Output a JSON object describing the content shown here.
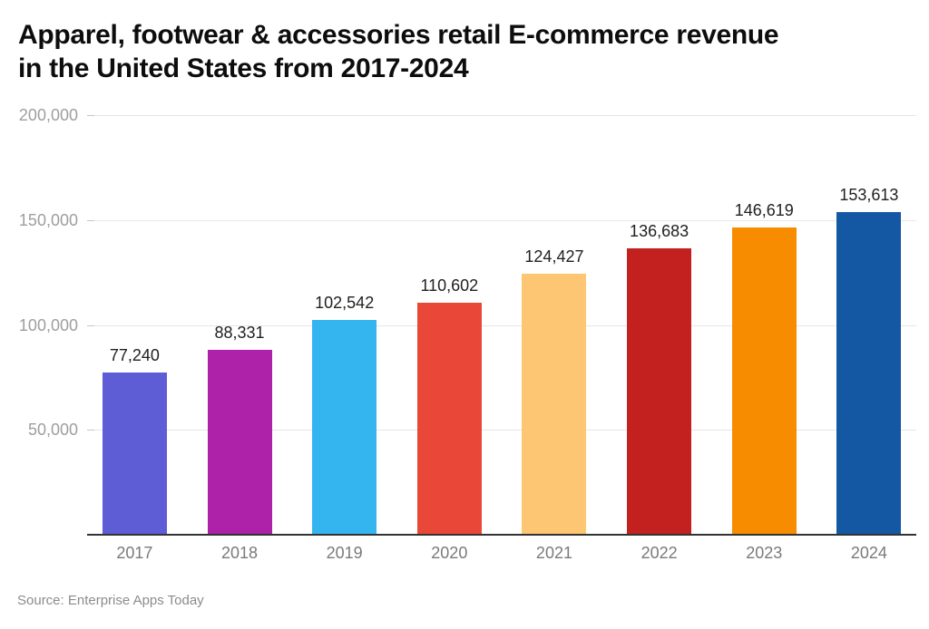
{
  "header": {
    "title": "Apparel, footwear & accessories retail E-commerce revenue in the United States from 2017-2024",
    "title_line1": "Apparel, footwear & accessories retail E-commerce revenue",
    "title_line2": "in the United States from 2017-2024"
  },
  "footer": {
    "source": "Source: Enterprise Apps Today"
  },
  "chart_data": {
    "type": "bar",
    "title": "Apparel, footwear & accessories retail E-commerce revenue in the United States from 2017-2024",
    "categories": [
      "2017",
      "2018",
      "2019",
      "2020",
      "2021",
      "2022",
      "2023",
      "2024"
    ],
    "values": [
      77240,
      88331,
      102542,
      110602,
      124427,
      136683,
      146619,
      153613
    ],
    "value_labels": [
      "77,240",
      "88,331",
      "102,542",
      "110,602",
      "124,427",
      "136,683",
      "146,619",
      "153,613"
    ],
    "bar_colors": [
      "#5e5dd6",
      "#ae22aa",
      "#35b5f0",
      "#e94738",
      "#fdc672",
      "#c32020",
      "#f78c00",
      "#1457a3"
    ],
    "xlabel": "",
    "ylabel": "",
    "ylim": [
      0,
      200000
    ],
    "yticks": [
      50000,
      100000,
      150000,
      200000
    ],
    "ytick_labels": [
      "50,000",
      "100,000",
      "150,000",
      "200,000"
    ],
    "grid": true,
    "legend": false,
    "source": "Source: Enterprise Apps Today",
    "colors": {
      "value_label": "#212121",
      "xtick_label": "#7a7a7a",
      "ytick_label": "#9e9e9e",
      "gridline": "#e6e6e6",
      "baseline": "#333333",
      "title": "#0d0d0d",
      "source": "#8c8c8c",
      "background": "#ffffff"
    }
  }
}
